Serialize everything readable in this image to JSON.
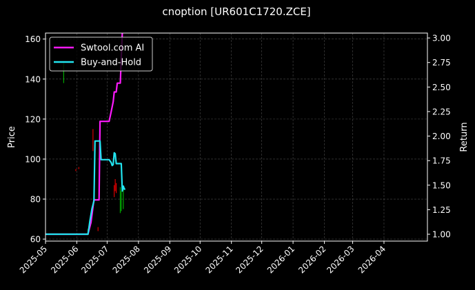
{
  "chart_data": {
    "type": "line",
    "title": "cnoption [UR601C1720.ZCE]",
    "ylabel": "Price",
    "y2label": "Return",
    "ylim": [
      59,
      163
    ],
    "y2lim": [
      0.93,
      3.05
    ],
    "xlim": [
      "2025-05-01",
      "2026-05-14"
    ],
    "grid": true,
    "legend_position": "top-left",
    "x_ticks": [
      "2025-05",
      "2025-06",
      "2025-07",
      "2025-08",
      "2025-09",
      "2025-10",
      "2025-11",
      "2025-12",
      "2026-01",
      "2026-02",
      "2026-03",
      "2026-04"
    ],
    "y_ticks": [
      60,
      80,
      100,
      120,
      140,
      160
    ],
    "y2_ticks": [
      "1.00",
      "1.25",
      "1.50",
      "1.75",
      "2.00",
      "2.25",
      "2.50",
      "2.75",
      "3.00"
    ],
    "series": [
      {
        "name": "Swtool.com AI",
        "axis": "right",
        "color": "#ff1aff",
        "x": [
          "2025-05-01",
          "2025-06-12",
          "2025-06-15",
          "2025-06-17",
          "2025-06-18",
          "2025-06-23",
          "2025-06-24",
          "2025-07-03",
          "2025-07-05",
          "2025-07-07",
          "2025-07-08",
          "2025-07-10",
          "2025-07-11",
          "2025-07-14",
          "2025-07-15",
          "2025-07-16"
        ],
        "y": [
          1.0,
          1.0,
          1.12,
          1.28,
          1.35,
          1.35,
          2.15,
          2.15,
          2.25,
          2.35,
          2.45,
          2.45,
          2.54,
          2.54,
          2.8,
          3.05
        ]
      },
      {
        "name": "Buy-and-Hold",
        "axis": "right",
        "color": "#22e5f0",
        "x": [
          "2025-05-01",
          "2025-06-12",
          "2025-06-14",
          "2025-06-16",
          "2025-06-18",
          "2025-06-19",
          "2025-06-24",
          "2025-06-25",
          "2025-07-03",
          "2025-07-05",
          "2025-07-06",
          "2025-07-07",
          "2025-07-08",
          "2025-07-09",
          "2025-07-10",
          "2025-07-15",
          "2025-07-16",
          "2025-07-17",
          "2025-07-18",
          "2025-07-19"
        ],
        "y": [
          1.0,
          1.0,
          1.14,
          1.26,
          1.34,
          1.95,
          1.95,
          1.76,
          1.76,
          1.73,
          1.7,
          1.71,
          1.83,
          1.82,
          1.72,
          1.72,
          1.44,
          1.49,
          1.46,
          1.46
        ]
      }
    ],
    "candles": [
      {
        "date": "2025-05-19",
        "low": 138,
        "high": 149,
        "color": "#00c800"
      },
      {
        "date": "2025-05-31",
        "low": 94,
        "high": 95,
        "color": "#ff0000"
      },
      {
        "date": "2025-06-03",
        "low": 95,
        "high": 96,
        "color": "#ff0000"
      },
      {
        "date": "2025-06-12",
        "low": 62,
        "high": 65,
        "color": "#00c800"
      },
      {
        "date": "2025-06-17",
        "low": 104,
        "high": 115,
        "color": "#ff0000"
      },
      {
        "date": "2025-06-22",
        "low": 64,
        "high": 66,
        "color": "#ff0000"
      },
      {
        "date": "2025-07-08",
        "low": 81,
        "high": 87,
        "color": "#ff0000"
      },
      {
        "date": "2025-07-09",
        "low": 84,
        "high": 90,
        "color": "#ff0000"
      },
      {
        "date": "2025-07-10",
        "low": 83,
        "high": 88,
        "color": "#ff0000"
      },
      {
        "date": "2025-07-14",
        "low": 73,
        "high": 86,
        "color": "#00c800"
      },
      {
        "date": "2025-07-15",
        "low": 74,
        "high": 84,
        "color": "#00c800"
      },
      {
        "date": "2025-07-17",
        "low": 75,
        "high": 85,
        "color": "#00c800"
      }
    ]
  }
}
